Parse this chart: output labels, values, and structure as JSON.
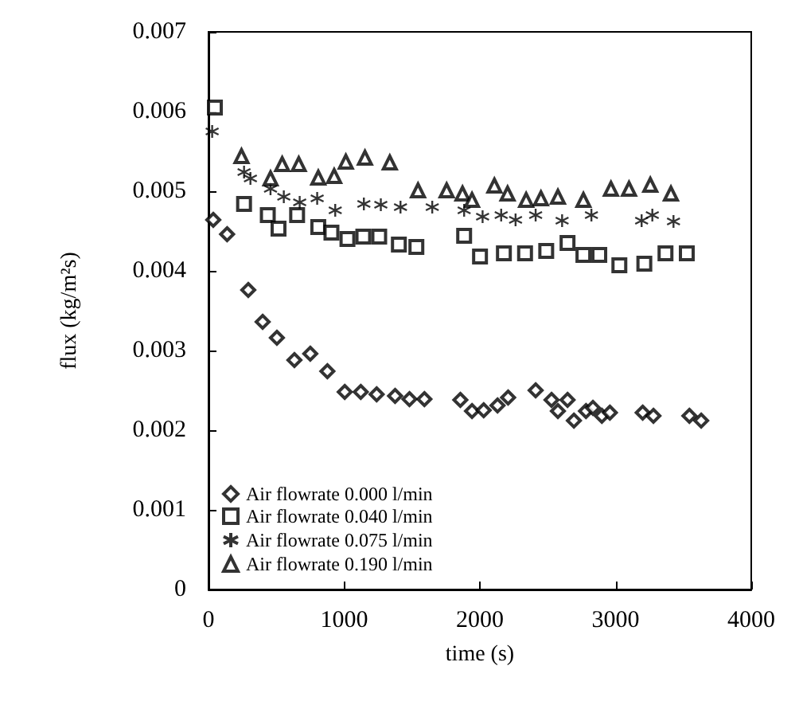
{
  "chart_data": {
    "type": "scatter",
    "xlabel": "time (s)",
    "ylabel": "flux (kg/m²s)",
    "xlim": [
      0,
      4000
    ],
    "xticks": [
      0,
      1000,
      2000,
      3000,
      4000
    ],
    "ylim": [
      0,
      0.007
    ],
    "yticks": [
      0,
      0.001,
      0.002,
      0.003,
      0.004,
      0.005,
      0.006,
      0.007
    ],
    "grid": false,
    "legend": "bottom left",
    "series": [
      {
        "name": "Air flowrate 0.000 l/min",
        "color": "#000000",
        "marker": "diamond",
        "x": [
          35,
          137,
          293,
          399,
          504,
          633,
          750,
          876,
          1004,
          1122,
          1239,
          1375,
          1481,
          1591,
          1856,
          1942,
          2028,
          2130,
          2208,
          2411,
          2528,
          2575,
          2646,
          2693,
          2782,
          2833,
          2899,
          2958,
          3200,
          3279,
          3544,
          3631
        ],
        "values": [
          0.00464,
          0.00446,
          0.00376,
          0.00336,
          0.00316,
          0.00288,
          0.00296,
          0.00274,
          0.00248,
          0.00248,
          0.00245,
          0.00243,
          0.00239,
          0.00239,
          0.00238,
          0.00224,
          0.00225,
          0.00231,
          0.00241,
          0.0025,
          0.00238,
          0.00224,
          0.00238,
          0.00212,
          0.00224,
          0.00228,
          0.00218,
          0.00222,
          0.00222,
          0.00218,
          0.00218,
          0.00212
        ]
      },
      {
        "name": "Air flowrate 0.040 l/min",
        "color": "#000000",
        "marker": "square",
        "x": [
          47,
          262,
          437,
          516,
          653,
          809,
          906,
          1024,
          1141,
          1258,
          1403,
          1532,
          1884,
          2001,
          2177,
          2333,
          2489,
          2646,
          2763,
          2880,
          3028,
          3212,
          3368,
          3525
        ],
        "values": [
          0.00605,
          0.00484,
          0.0047,
          0.00453,
          0.0047,
          0.00455,
          0.00448,
          0.0044,
          0.00443,
          0.00443,
          0.00433,
          0.0043,
          0.00444,
          0.00418,
          0.00422,
          0.00422,
          0.00425,
          0.00435,
          0.0042,
          0.0042,
          0.00407,
          0.00409,
          0.00422,
          0.00422
        ]
      },
      {
        "name": "Air flowrate 0.075 l/min",
        "color": "#000000",
        "marker": "cross",
        "x": [
          27,
          262,
          309,
          457,
          555,
          672,
          801,
          934,
          1145,
          1270,
          1415,
          1649,
          1884,
          2020,
          2157,
          2263,
          2411,
          2606,
          2822,
          3192,
          3271,
          3427
        ],
        "values": [
          0.00575,
          0.00524,
          0.00516,
          0.00503,
          0.00493,
          0.00486,
          0.00491,
          0.00476,
          0.00484,
          0.00483,
          0.0048,
          0.0048,
          0.00476,
          0.00468,
          0.0047,
          0.00464,
          0.0047,
          0.00463,
          0.0047,
          0.00463,
          0.0047,
          0.00462
        ]
      },
      {
        "name": "Air flowrate 0.190 l/min",
        "color": "#000000",
        "marker": "triangle",
        "x": [
          243,
          457,
          543,
          665,
          809,
          926,
          1012,
          1153,
          1336,
          1544,
          1755,
          1872,
          1942,
          2107,
          2204,
          2341,
          2450,
          2575,
          2763,
          2966,
          3099,
          3256,
          3408
        ],
        "values": [
          0.00544,
          0.00516,
          0.00534,
          0.00534,
          0.00517,
          0.00519,
          0.00537,
          0.00542,
          0.00536,
          0.00501,
          0.00501,
          0.00497,
          0.00489,
          0.00507,
          0.00497,
          0.00489,
          0.00491,
          0.00493,
          0.00489,
          0.00503,
          0.00503,
          0.00508,
          0.00497
        ]
      }
    ]
  }
}
